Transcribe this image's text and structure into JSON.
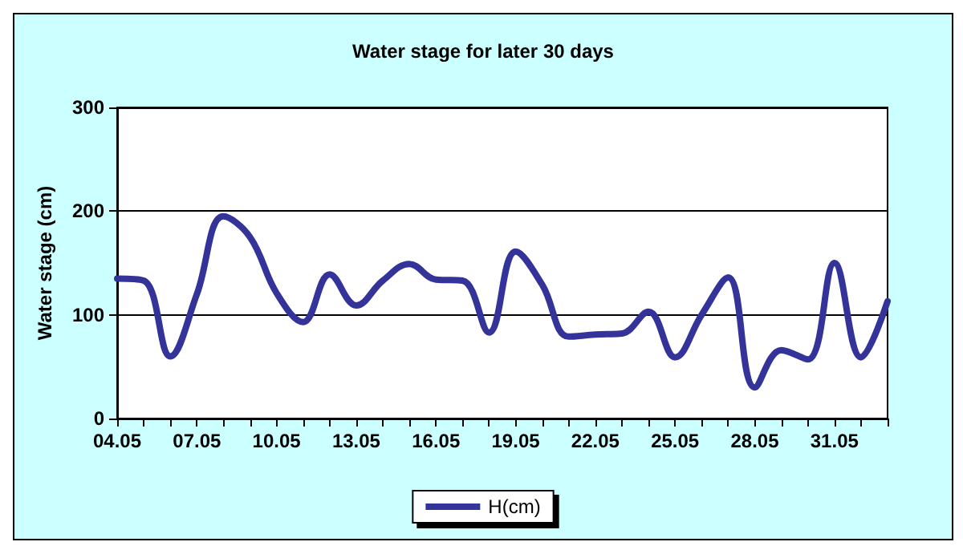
{
  "chart_data": {
    "type": "line",
    "title": "Water stage for later 30 days",
    "ylabel": "Water stage (cm)",
    "categories": [
      "04.05",
      null,
      null,
      "07.05",
      null,
      null,
      "10.05",
      null,
      null,
      "13.05",
      null,
      null,
      "16.05",
      null,
      null,
      "19.05",
      null,
      null,
      "22.05",
      null,
      null,
      "25.05",
      null,
      null,
      "28.05",
      null,
      null,
      "31.05",
      null,
      null
    ],
    "series": [
      {
        "name": "H(cm)",
        "color": "#333399",
        "values": [
          135,
          133,
          60,
          120,
          195,
          175,
          121,
          93,
          139,
          109,
          133,
          149,
          134,
          133,
          83,
          161,
          129,
          79,
          81,
          82,
          103,
          59,
          100,
          136,
          30,
          66,
          57,
          150,
          59,
          113
        ]
      }
    ],
    "ylim": [
      0,
      300
    ],
    "yticks": [
      0,
      100,
      200,
      300
    ],
    "grid": "y",
    "legend": "bottom",
    "marker": "none",
    "line_style": "solid"
  }
}
